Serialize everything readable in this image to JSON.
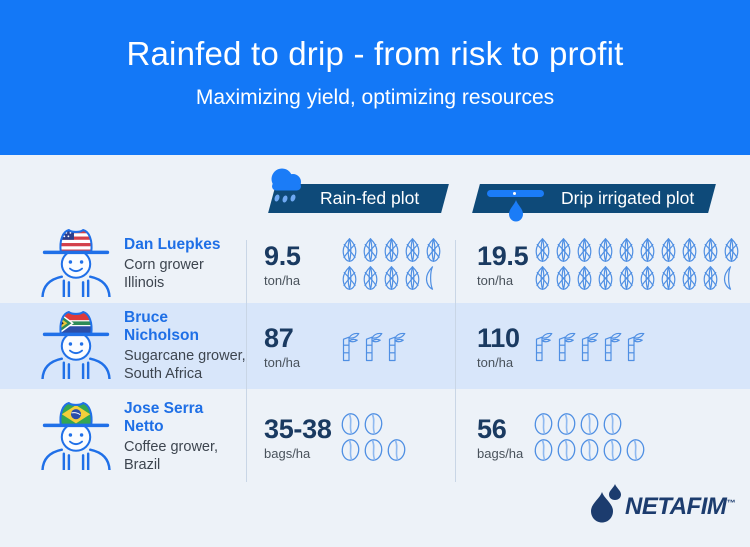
{
  "banner": {
    "title": "Rainfed to drip - from risk to profit",
    "subtitle": "Maximizing yield, optimizing resources"
  },
  "columns": {
    "rainfed": {
      "label": "Rain-fed plot",
      "icon": "rain-cloud-icon"
    },
    "drip": {
      "label": "Drip irrigated plot",
      "icon": "drip-line-icon"
    }
  },
  "rows": [
    {
      "farmer": {
        "name": "Dan Luepkes",
        "role": "Corn grower",
        "location": "Illinois",
        "flag": "usa"
      },
      "crop": "corn",
      "rainfed": {
        "value": "9.5",
        "unit": "ton/ha",
        "icon_rows": [
          5,
          4.5
        ]
      },
      "drip": {
        "value": "19.5",
        "unit": "ton/ha",
        "icon_rows": [
          10,
          9.5
        ]
      }
    },
    {
      "farmer": {
        "name": "Bruce Nicholson",
        "role": "Sugarcane grower,",
        "location": "South Africa",
        "flag": "south-africa"
      },
      "crop": "sugarcane",
      "rainfed": {
        "value": "87",
        "unit": "ton/ha",
        "icon_rows": [
          3
        ]
      },
      "drip": {
        "value": "110",
        "unit": "ton/ha",
        "icon_rows": [
          5
        ]
      }
    },
    {
      "farmer": {
        "name": "Jose Serra Netto",
        "role": "Coffee grower,",
        "location": "Brazil",
        "flag": "brazil"
      },
      "crop": "coffee",
      "rainfed": {
        "value": "35-38",
        "unit": "bags/ha",
        "icon_rows": [
          2,
          3
        ]
      },
      "drip": {
        "value": "56",
        "unit": "bags/ha",
        "icon_rows": [
          4,
          5
        ]
      }
    }
  ],
  "logo": {
    "text": "NETAFIM",
    "tm": "™"
  },
  "colors": {
    "banner_blue": "#1378F7",
    "badge_navy": "#0E4A79",
    "row_tint": "#D8E6FA",
    "page_bg": "#EDF2F8",
    "accent_blue": "#1B7CF7",
    "value_navy": "#1A3A61",
    "name_blue": "#1E6FE6",
    "icon_blue": "#4F8FE3",
    "logo_navy": "#1C3C6E"
  },
  "chart_data": {
    "type": "table",
    "title": "Rainfed to drip - from risk to profit",
    "subtitle": "Maximizing yield, optimizing resources",
    "categories": [
      "Dan Luepkes — Corn grower, Illinois",
      "Bruce Nicholson — Sugarcane grower, South Africa",
      "Jose Serra Netto — Coffee grower, Brazil"
    ],
    "series": [
      {
        "name": "Rain-fed plot",
        "values": [
          9.5,
          87,
          36.5
        ],
        "labels": [
          "9.5 ton/ha",
          "87 ton/ha",
          "35-38 bags/ha"
        ]
      },
      {
        "name": "Drip irrigated plot",
        "values": [
          19.5,
          110,
          56
        ],
        "labels": [
          "19.5 ton/ha",
          "110 ton/ha",
          "56 bags/ha"
        ]
      }
    ],
    "units": [
      "ton/ha",
      "ton/ha",
      "bags/ha"
    ],
    "legend_position": "top",
    "grid": false
  }
}
